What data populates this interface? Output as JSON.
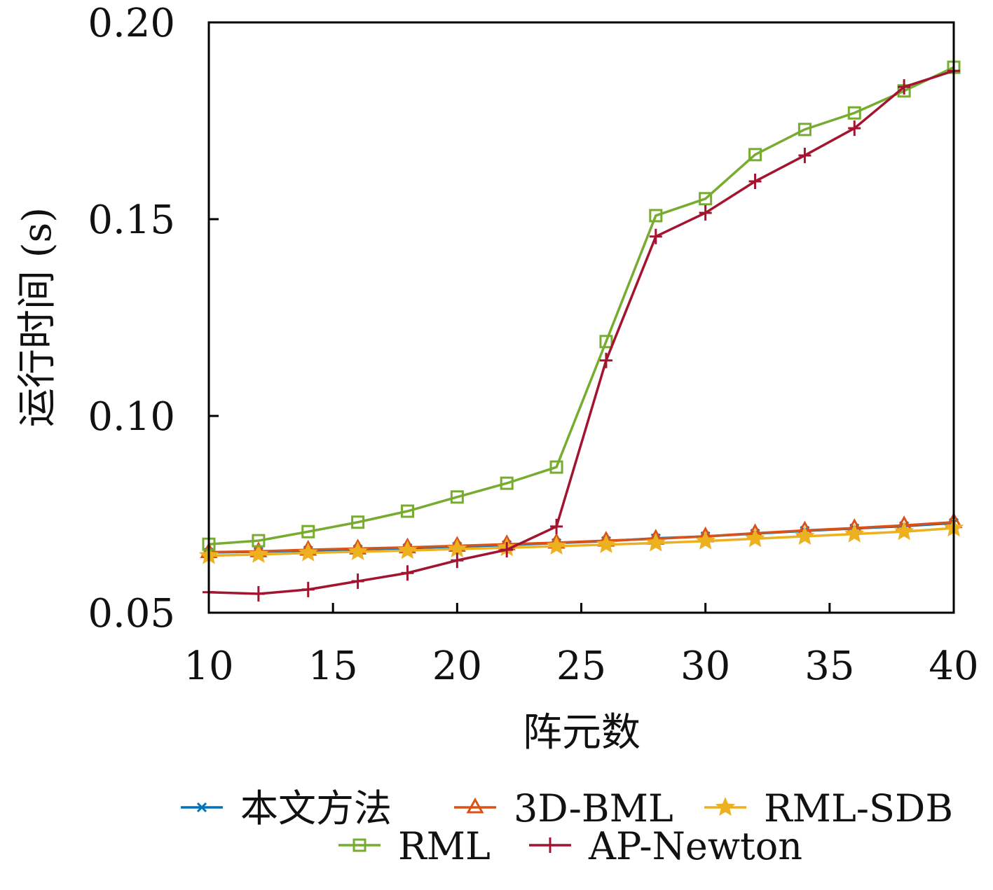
{
  "chart_data": {
    "type": "line",
    "title": "",
    "xlabel": "阵元数",
    "ylabel": "运行时间 (s)",
    "xlim": [
      10,
      40
    ],
    "ylim": [
      0.05,
      0.2
    ],
    "xticks": [
      "10",
      "15",
      "20",
      "25",
      "30",
      "35",
      "40"
    ],
    "yticks": [
      "0.05",
      "0.10",
      "0.15",
      "0.20"
    ],
    "grid": false,
    "legend_position": "bottom",
    "x": [
      10,
      12,
      14,
      16,
      18,
      20,
      22,
      24,
      26,
      28,
      30,
      32,
      34,
      36,
      38,
      40
    ],
    "series": [
      {
        "name": "本文方法",
        "color": "#0072BD",
        "marker": "x",
        "values": [
          0.0653,
          0.0655,
          0.0658,
          0.0661,
          0.0664,
          0.0668,
          0.0672,
          0.0677,
          0.0682,
          0.0689,
          0.0694,
          0.0701,
          0.0708,
          0.0714,
          0.072,
          0.0728
        ]
      },
      {
        "name": "3D-BML",
        "color": "#D95319",
        "marker": "triangle",
        "values": [
          0.0654,
          0.0656,
          0.066,
          0.0663,
          0.0666,
          0.067,
          0.0674,
          0.0678,
          0.0683,
          0.0688,
          0.0694,
          0.0702,
          0.0709,
          0.0715,
          0.0722,
          0.073
        ]
      },
      {
        "name": "RML-SDB",
        "color": "#EDB120",
        "marker": "star",
        "values": [
          0.0645,
          0.0648,
          0.0652,
          0.0655,
          0.0658,
          0.0662,
          0.0665,
          0.0669,
          0.0673,
          0.0677,
          0.0682,
          0.0688,
          0.0694,
          0.07,
          0.0706,
          0.0715
        ]
      },
      {
        "name": "RML",
        "color": "#77AC30",
        "marker": "square",
        "values": [
          0.0674,
          0.0683,
          0.0706,
          0.073,
          0.0758,
          0.0794,
          0.0829,
          0.087,
          0.1189,
          0.1509,
          0.1552,
          0.1664,
          0.1728,
          0.177,
          0.1826,
          0.1886
        ]
      },
      {
        "name": "AP-Newton",
        "color": "#A2142F",
        "marker": "plus",
        "values": [
          0.0552,
          0.0548,
          0.0559,
          0.058,
          0.0601,
          0.0633,
          0.066,
          0.0719,
          0.1141,
          0.1456,
          0.1516,
          0.1596,
          0.1662,
          0.1731,
          0.1836,
          0.1877
        ]
      }
    ]
  }
}
